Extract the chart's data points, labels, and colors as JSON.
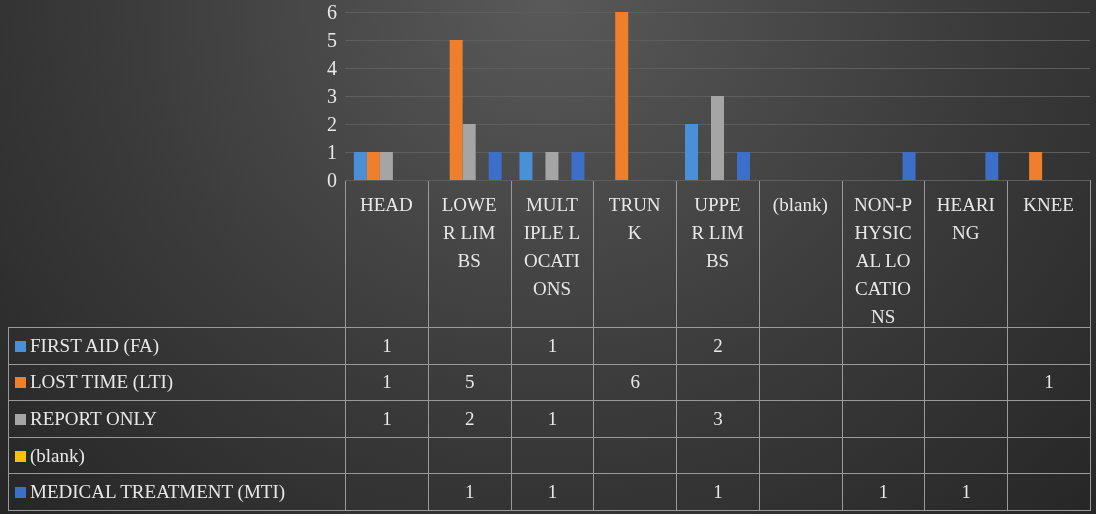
{
  "chart_data": {
    "type": "bar",
    "categories": [
      "HEAD",
      "LOWER LIMBS",
      "MULTIPLE LOCATIONS",
      "TRUNK",
      "UPPER LIMBS",
      "(blank)",
      "NON-PHYSICAL LOCATIONS",
      "HEARING",
      "KNEE"
    ],
    "series": [
      {
        "name": "FIRST AID (FA)",
        "color": "#4a90d9",
        "values": [
          1,
          null,
          1,
          null,
          2,
          null,
          null,
          null,
          null
        ]
      },
      {
        "name": "LOST TIME (LTI)",
        "color": "#f07f2b",
        "values": [
          1,
          5,
          null,
          6,
          null,
          null,
          null,
          null,
          1
        ]
      },
      {
        "name": "REPORT ONLY",
        "color": "#a5a5a5",
        "values": [
          1,
          2,
          1,
          null,
          3,
          null,
          null,
          null,
          null
        ]
      },
      {
        "name": "(blank)",
        "color": "#ffc000",
        "values": [
          null,
          null,
          null,
          null,
          null,
          null,
          null,
          null,
          null
        ]
      },
      {
        "name": "MEDICAL TREATMENT (MTI)",
        "color": "#3b6fc9",
        "values": [
          null,
          1,
          1,
          null,
          1,
          null,
          1,
          1,
          null
        ]
      }
    ],
    "ylim": [
      0,
      6
    ],
    "yticks": [
      0,
      1,
      2,
      3,
      4,
      5,
      6
    ],
    "grid": "y",
    "legend": "bottom left",
    "data_labels": true
  }
}
